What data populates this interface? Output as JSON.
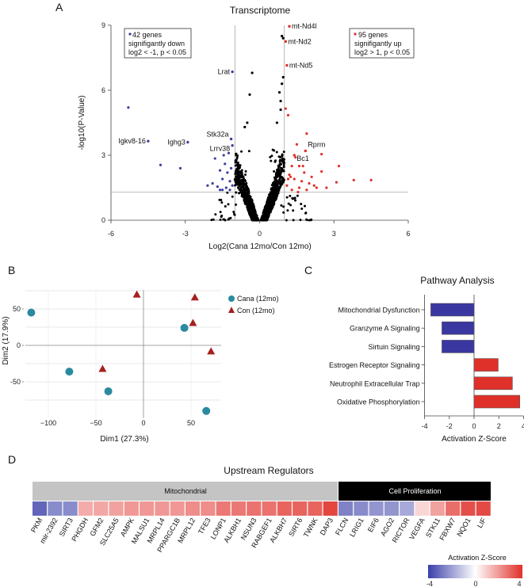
{
  "panels": {
    "a": "A",
    "b": "B",
    "c": "C",
    "d": "D"
  },
  "colors": {
    "down": "#3b3fa0",
    "up": "#e0302a",
    "ns": "#000000",
    "cana": "#2a8aa0",
    "con": "#a5201e"
  },
  "chart_data": [
    {
      "type": "scatter",
      "id": "volcano",
      "title": "Transcriptome",
      "xlabel": "Log2(Cana 12mo/Con 12mo)",
      "ylabel": "-log10(P-Value)",
      "xlim": [
        -6,
        6
      ],
      "ylim": [
        0,
        9
      ],
      "xticks": [
        "-6",
        "-3",
        "0",
        "3",
        "6"
      ],
      "yticks": [
        "0",
        "3",
        "6",
        "9"
      ],
      "thresholds": {
        "log2fc": [
          -1,
          1
        ],
        "neglog10p": 1.3
      },
      "legend_down": [
        "42 genes",
        "signifigantly down",
        "log2 < -1, p < 0.05"
      ],
      "legend_up": [
        "95 genes",
        "signifigantly up",
        "log2 > 1, p < 0.05"
      ],
      "labeled_points": [
        {
          "gene": "mt-Nd4l",
          "x": 1.2,
          "y": 8.95,
          "group": "up"
        },
        {
          "gene": "mt-Nd2",
          "x": 1.05,
          "y": 8.25,
          "group": "up"
        },
        {
          "gene": "mt-Nd5",
          "x": 1.1,
          "y": 7.15,
          "group": "up"
        },
        {
          "gene": "Lrat",
          "x": -1.1,
          "y": 6.85,
          "group": "down"
        },
        {
          "gene": "Igkv8-16",
          "x": -4.5,
          "y": 3.65,
          "group": "down"
        },
        {
          "gene": "Ighg3",
          "x": -2.9,
          "y": 3.6,
          "group": "down"
        },
        {
          "gene": "Stk32a",
          "x": -1.15,
          "y": 3.75,
          "group": "down"
        },
        {
          "gene": "Lrrv38",
          "x": -1.1,
          "y": 3.45,
          "group": "down"
        },
        {
          "gene": "Rprm",
          "x": 1.85,
          "y": 3.2,
          "group": "up"
        },
        {
          "gene": "Bc1",
          "x": 1.4,
          "y": 3.0,
          "group": "up"
        }
      ],
      "down_points": [
        [
          -5.3,
          5.2
        ],
        [
          -4.0,
          2.55
        ],
        [
          -3.2,
          2.4
        ],
        [
          -1.8,
          2.85
        ],
        [
          -1.6,
          2.3
        ],
        [
          -1.5,
          1.9
        ],
        [
          -1.9,
          1.7
        ],
        [
          -1.7,
          1.55
        ],
        [
          -1.4,
          2.6
        ],
        [
          -1.3,
          2.2
        ],
        [
          -1.2,
          1.8
        ],
        [
          -1.35,
          1.5
        ],
        [
          -1.6,
          1.4
        ],
        [
          -1.25,
          3.1
        ],
        [
          -1.45,
          3.0
        ],
        [
          -1.15,
          2.4
        ],
        [
          -1.1,
          1.6
        ],
        [
          -2.1,
          1.6
        ],
        [
          -1.5,
          1.4
        ],
        [
          -1.2,
          1.4
        ]
      ],
      "up_points": [
        [
          4.5,
          1.85
        ],
        [
          3.8,
          1.85
        ],
        [
          3.1,
          1.75
        ],
        [
          3.2,
          2.5
        ],
        [
          2.5,
          3.05
        ],
        [
          1.9,
          4.0
        ],
        [
          2.7,
          1.5
        ],
        [
          2.5,
          2.25
        ],
        [
          1.05,
          5.15
        ],
        [
          1.15,
          4.85
        ],
        [
          1.5,
          3.5
        ],
        [
          1.3,
          2.5
        ],
        [
          1.6,
          2.5
        ],
        [
          1.2,
          2.1
        ],
        [
          1.4,
          1.9
        ],
        [
          1.8,
          2.2
        ],
        [
          2.0,
          1.7
        ],
        [
          2.2,
          1.6
        ],
        [
          1.1,
          1.6
        ],
        [
          1.3,
          1.4
        ],
        [
          1.6,
          1.5
        ],
        [
          1.9,
          1.4
        ],
        [
          2.3,
          1.5
        ],
        [
          1.15,
          1.9
        ],
        [
          1.7,
          1.8
        ],
        [
          2.1,
          2.0
        ],
        [
          1.45,
          2.9
        ],
        [
          1.75,
          2.5
        ],
        [
          1.25,
          2.0
        ],
        [
          1.55,
          1.3
        ]
      ]
    },
    {
      "type": "scatter",
      "id": "pca",
      "xlabel": "Dim1 (27.3%)",
      "ylabel": "Dim2 (17.9%)",
      "xticks": [
        "−100",
        "−50",
        "0",
        "50"
      ],
      "yticks": [
        "50",
        "0",
        "-50"
      ],
      "series": [
        {
          "name": "Cana (12mo)",
          "marker": "circle",
          "points": [
            [
              -118,
              45
            ],
            [
              -78,
              -36
            ],
            [
              -37,
              -63
            ],
            [
              43,
              24
            ],
            [
              66,
              -90
            ]
          ]
        },
        {
          "name": "Con (12mo)",
          "marker": "triangle",
          "points": [
            [
              -7,
              70
            ],
            [
              54,
              66
            ],
            [
              52,
              31
            ],
            [
              71,
              -8
            ],
            [
              -43,
              -32
            ]
          ]
        }
      ]
    },
    {
      "type": "bar",
      "id": "pathway",
      "title": "Pathway Analysis",
      "xlabel": "Activation Z-Score",
      "xlim": [
        -4,
        4
      ],
      "xticks": [
        "-4",
        "-2",
        "0",
        "2",
        "4"
      ],
      "categories": [
        "Mitochondrial Dysfunction",
        "Granzyme A Signaling",
        "Sirtuin Signaling",
        "Estrogen Receptor Signaling",
        "Neutrophil Extracellular Trap",
        "Oxidative Phosphorylation"
      ],
      "values": [
        -3.5,
        -2.6,
        -2.6,
        1.95,
        3.1,
        3.7
      ]
    },
    {
      "type": "heatmap",
      "id": "upstream",
      "title": "Upstream Regulators",
      "groups": [
        {
          "name": "Mitochondrial",
          "count": 20
        },
        {
          "name": "Cell Proliferation",
          "count": 10
        }
      ],
      "categories": [
        "PKM",
        "mir-2392",
        "SIRT3",
        "PHGDH",
        "GFM2",
        "SLC25A5",
        "AMPK",
        "MALSU1",
        "MRPL14",
        "PPARGC1B",
        "MRPL12",
        "TFE3",
        "LONP1",
        "ALKBH1",
        "NSUN3",
        "RABGEF1",
        "ALKBH7",
        "SIRT6",
        "TWNK",
        "DAP3",
        "FLCN",
        "LRIG1",
        "EIF6",
        "AGO2",
        "RICTOR",
        "VEGFA",
        "STK11",
        "FBXW7",
        "NQO1",
        "LIF"
      ],
      "values": [
        -3.2,
        -2.4,
        -2.4,
        1.6,
        1.7,
        1.8,
        2.0,
        2.0,
        2.0,
        2.0,
        2.2,
        2.2,
        2.6,
        2.6,
        2.7,
        2.7,
        3.0,
        3.0,
        3.0,
        3.6,
        -2.6,
        -2.4,
        -2.2,
        -2.2,
        -1.8,
        0.8,
        1.8,
        2.8,
        3.4,
        3.5
      ],
      "colorbar": {
        "title": "Activation Z-Score",
        "min": -4,
        "max": 4,
        "ticks": [
          "-4",
          "0",
          "4"
        ]
      }
    }
  ]
}
